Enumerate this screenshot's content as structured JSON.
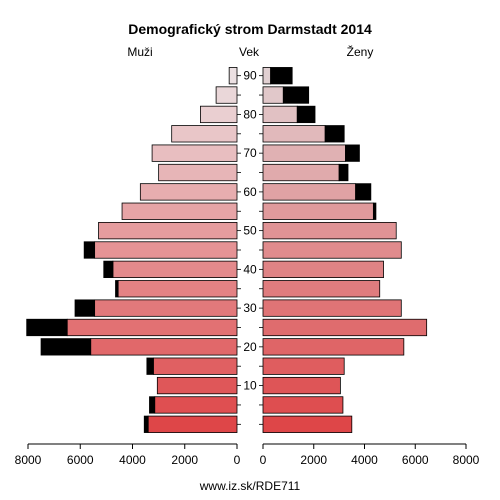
{
  "chart_data": {
    "type": "population-pyramid",
    "title": "Demografický strom Darmstadt 2014",
    "left_label": "Muži",
    "center_label": "Vek",
    "right_label": "Ženy",
    "source_label": "www.iz.sk/RDE711",
    "x_ticks": [
      8000,
      6000,
      4000,
      2000,
      0
    ],
    "x_max": 8000,
    "age_ticks": [
      10,
      20,
      30,
      40,
      50,
      60,
      70,
      80,
      90
    ],
    "age_groups": [
      "0-4",
      "5-9",
      "10-14",
      "15-19",
      "20-24",
      "25-29",
      "30-34",
      "35-39",
      "40-44",
      "45-49",
      "50-54",
      "55-59",
      "60-64",
      "65-69",
      "70-74",
      "75-79",
      "80-84",
      "85-89",
      "90+"
    ],
    "series": [
      {
        "name": "Muži",
        "values": [
          3400,
          3150,
          3050,
          3200,
          5600,
          6500,
          5450,
          4550,
          4750,
          5450,
          5300,
          4400,
          3700,
          3000,
          3250,
          2500,
          1400,
          800,
          300
        ]
      },
      {
        "name": "Muži (prebytok)",
        "values": [
          150,
          200,
          0,
          250,
          1900,
          1550,
          750,
          100,
          350,
          400,
          0,
          0,
          0,
          0,
          0,
          0,
          0,
          0,
          0
        ]
      },
      {
        "name": "Ženy",
        "values": [
          3500,
          3150,
          3050,
          3200,
          5550,
          6450,
          5450,
          4600,
          4750,
          5450,
          5250,
          4350,
          3650,
          3000,
          3250,
          2450,
          1350,
          800,
          300
        ]
      },
      {
        "name": "Ženy (prebytok)",
        "values": [
          0,
          0,
          0,
          0,
          0,
          0,
          0,
          0,
          0,
          0,
          0,
          100,
          600,
          350,
          550,
          750,
          700,
          1000,
          850
        ]
      }
    ]
  }
}
